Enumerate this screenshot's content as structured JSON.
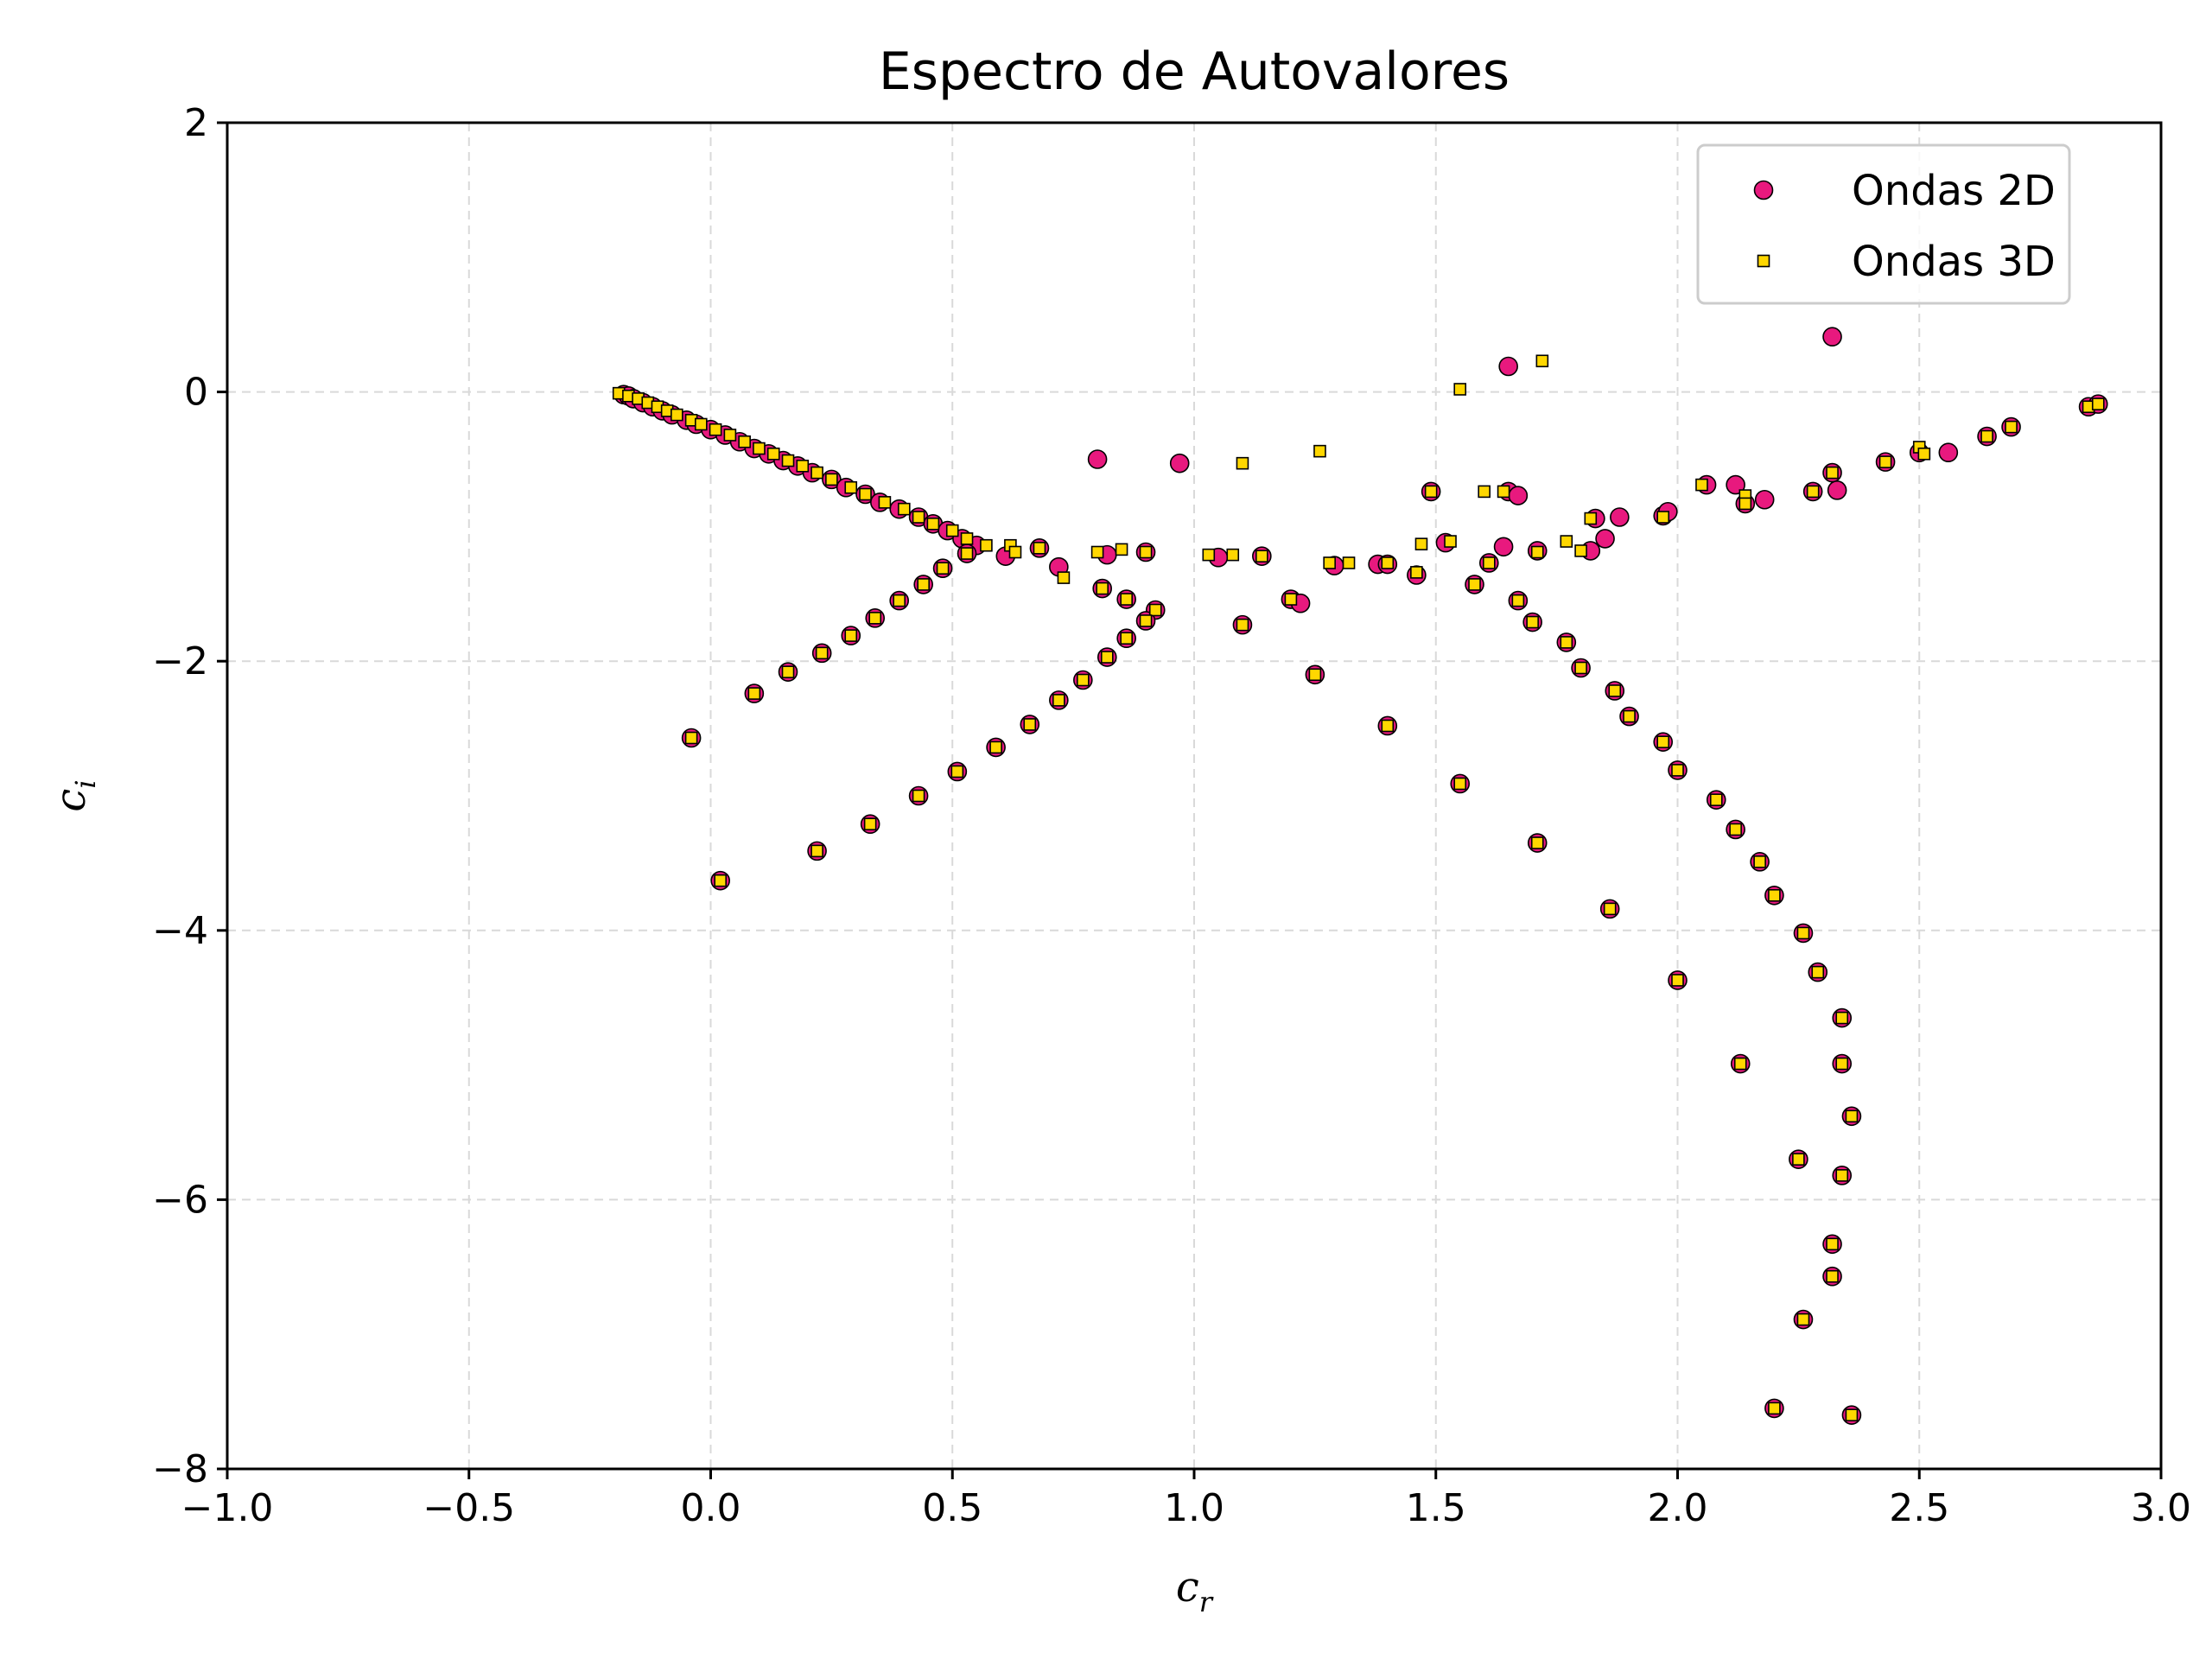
{
  "chart_data": {
    "type": "scatter",
    "title": "Espectro de Autovalores",
    "xlabel": "c",
    "xlabel_sub": "r",
    "ylabel": "c",
    "ylabel_sub": "i",
    "xlim": [
      -1.0,
      3.0
    ],
    "ylim": [
      -8,
      2
    ],
    "xticks": [
      -1.0,
      -0.5,
      0.0,
      0.5,
      1.0,
      1.5,
      2.0,
      2.5,
      3.0
    ],
    "xtick_labels": [
      "−1.0",
      "−0.5",
      "0.0",
      "0.5",
      "1.0",
      "1.5",
      "2.0",
      "2.5",
      "3.0"
    ],
    "yticks": [
      2,
      0,
      -2,
      -4,
      -6,
      -8
    ],
    "ytick_labels": [
      "2",
      "0",
      "−2",
      "−4",
      "−6",
      "−8"
    ],
    "grid": true,
    "legend_position": "top-right",
    "series": [
      {
        "name": "Ondas 2D",
        "marker": "circle",
        "color": "#e8197e",
        "edge_color": "#000000",
        "points": [
          [
            -0.18,
            -0.02
          ],
          [
            -0.17,
            -0.03
          ],
          [
            -0.16,
            -0.05
          ],
          [
            -0.14,
            -0.08
          ],
          [
            -0.12,
            -0.11
          ],
          [
            -0.1,
            -0.14
          ],
          [
            -0.08,
            -0.17
          ],
          [
            -0.05,
            -0.21
          ],
          [
            -0.03,
            -0.24
          ],
          [
            0.0,
            -0.28
          ],
          [
            0.03,
            -0.32
          ],
          [
            0.06,
            -0.37
          ],
          [
            0.09,
            -0.42
          ],
          [
            0.12,
            -0.46
          ],
          [
            0.15,
            -0.51
          ],
          [
            0.18,
            -0.55
          ],
          [
            0.21,
            -0.6
          ],
          [
            0.25,
            -0.65
          ],
          [
            0.28,
            -0.71
          ],
          [
            0.32,
            -0.76
          ],
          [
            0.35,
            -0.82
          ],
          [
            0.39,
            -0.87
          ],
          [
            0.43,
            -0.93
          ],
          [
            0.46,
            -0.98
          ],
          [
            0.49,
            -1.03
          ],
          [
            0.52,
            -1.09
          ],
          [
            0.55,
            -1.14
          ],
          [
            0.53,
            -1.2
          ],
          [
            0.48,
            -1.31
          ],
          [
            0.44,
            -1.43
          ],
          [
            0.39,
            -1.55
          ],
          [
            0.34,
            -1.68
          ],
          [
            0.29,
            -1.81
          ],
          [
            0.23,
            -1.94
          ],
          [
            0.16,
            -2.08
          ],
          [
            0.09,
            -2.24
          ],
          [
            -0.04,
            -2.57
          ],
          [
            0.02,
            -3.63
          ],
          [
            0.68,
            -1.16
          ],
          [
            0.72,
            -1.3
          ],
          [
            0.81,
            -1.46
          ],
          [
            0.86,
            -1.54
          ],
          [
            0.92,
            -1.62
          ],
          [
            0.9,
            -1.7
          ],
          [
            0.86,
            -1.83
          ],
          [
            0.82,
            -1.97
          ],
          [
            0.77,
            -2.14
          ],
          [
            0.72,
            -2.29
          ],
          [
            0.66,
            -2.47
          ],
          [
            0.59,
            -2.64
          ],
          [
            0.51,
            -2.82
          ],
          [
            0.43,
            -3.0
          ],
          [
            0.33,
            -3.21
          ],
          [
            0.22,
            -3.41
          ],
          [
            0.61,
            -1.22
          ],
          [
            0.8,
            -0.5
          ],
          [
            0.97,
            -0.53
          ],
          [
            0.82,
            -1.21
          ],
          [
            0.9,
            -1.19
          ],
          [
            1.05,
            -1.23
          ],
          [
            1.14,
            -1.22
          ],
          [
            1.1,
            -1.73
          ],
          [
            1.2,
            -1.54
          ],
          [
            1.22,
            -1.57
          ],
          [
            1.25,
            -2.1
          ],
          [
            1.29,
            -1.29
          ],
          [
            1.38,
            -1.28
          ],
          [
            1.4,
            -1.28
          ],
          [
            1.4,
            -2.48
          ],
          [
            1.46,
            -1.36
          ],
          [
            1.49,
            -0.74
          ],
          [
            1.52,
            -1.12
          ],
          [
            1.55,
            -2.91
          ],
          [
            1.58,
            -1.43
          ],
          [
            1.61,
            -1.27
          ],
          [
            1.64,
            -1.15
          ],
          [
            1.65,
            0.19
          ],
          [
            1.65,
            -0.74
          ],
          [
            1.67,
            -0.77
          ],
          [
            1.67,
            -1.55
          ],
          [
            1.7,
            -1.71
          ],
          [
            1.71,
            -1.18
          ],
          [
            1.71,
            -3.35
          ],
          [
            1.77,
            -1.86
          ],
          [
            1.8,
            -2.05
          ],
          [
            1.82,
            -1.18
          ],
          [
            1.83,
            -0.94
          ],
          [
            1.85,
            -1.09
          ],
          [
            1.86,
            -3.84
          ],
          [
            1.87,
            -2.22
          ],
          [
            1.88,
            -0.93
          ],
          [
            1.9,
            -2.41
          ],
          [
            1.97,
            -0.92
          ],
          [
            1.97,
            -2.6
          ],
          [
            1.98,
            -0.89
          ],
          [
            2.0,
            -2.81
          ],
          [
            2.0,
            -4.37
          ],
          [
            2.06,
            -0.69
          ],
          [
            2.08,
            -3.03
          ],
          [
            2.12,
            -0.69
          ],
          [
            2.12,
            -3.25
          ],
          [
            2.13,
            -4.99
          ],
          [
            2.14,
            -0.83
          ],
          [
            2.17,
            -3.49
          ],
          [
            2.18,
            -0.8
          ],
          [
            2.2,
            -3.74
          ],
          [
            2.2,
            -7.55
          ],
          [
            2.25,
            -5.7
          ],
          [
            2.26,
            -4.02
          ],
          [
            2.26,
            -6.89
          ],
          [
            2.28,
            -0.74
          ],
          [
            2.29,
            -4.31
          ],
          [
            2.32,
            0.41
          ],
          [
            2.32,
            -0.6
          ],
          [
            2.32,
            -6.33
          ],
          [
            2.32,
            -6.57
          ],
          [
            2.33,
            -0.73
          ],
          [
            2.34,
            -4.65
          ],
          [
            2.34,
            -4.99
          ],
          [
            2.34,
            -5.82
          ],
          [
            2.36,
            -5.38
          ],
          [
            2.36,
            -7.6
          ],
          [
            2.43,
            -0.52
          ],
          [
            2.5,
            -0.45
          ],
          [
            2.56,
            -0.45
          ],
          [
            2.64,
            -0.33
          ],
          [
            2.69,
            -0.26
          ],
          [
            2.85,
            -0.11
          ],
          [
            2.87,
            -0.09
          ]
        ]
      },
      {
        "name": "Ondas 3D",
        "marker": "square",
        "color": "#ffd700",
        "edge_color": "#000000",
        "points": [
          [
            -0.19,
            -0.01
          ],
          [
            -0.17,
            -0.03
          ],
          [
            -0.15,
            -0.05
          ],
          [
            -0.13,
            -0.08
          ],
          [
            -0.11,
            -0.11
          ],
          [
            -0.09,
            -0.14
          ],
          [
            -0.07,
            -0.17
          ],
          [
            -0.04,
            -0.21
          ],
          [
            -0.02,
            -0.24
          ],
          [
            0.01,
            -0.28
          ],
          [
            0.04,
            -0.32
          ],
          [
            0.07,
            -0.37
          ],
          [
            0.1,
            -0.42
          ],
          [
            0.13,
            -0.46
          ],
          [
            0.16,
            -0.51
          ],
          [
            0.19,
            -0.55
          ],
          [
            0.22,
            -0.6
          ],
          [
            0.25,
            -0.65
          ],
          [
            0.29,
            -0.71
          ],
          [
            0.32,
            -0.76
          ],
          [
            0.36,
            -0.82
          ],
          [
            0.4,
            -0.87
          ],
          [
            0.43,
            -0.93
          ],
          [
            0.46,
            -0.98
          ],
          [
            0.5,
            -1.03
          ],
          [
            0.53,
            -1.09
          ],
          [
            0.57,
            -1.14
          ],
          [
            0.53,
            -1.2
          ],
          [
            0.48,
            -1.31
          ],
          [
            0.44,
            -1.43
          ],
          [
            0.39,
            -1.55
          ],
          [
            0.34,
            -1.68
          ],
          [
            0.29,
            -1.81
          ],
          [
            0.23,
            -1.94
          ],
          [
            0.16,
            -2.08
          ],
          [
            0.09,
            -2.24
          ],
          [
            -0.04,
            -2.57
          ],
          [
            0.02,
            -3.63
          ],
          [
            0.68,
            -1.16
          ],
          [
            0.73,
            -1.38
          ],
          [
            0.81,
            -1.46
          ],
          [
            0.86,
            -1.54
          ],
          [
            0.92,
            -1.62
          ],
          [
            0.9,
            -1.7
          ],
          [
            0.86,
            -1.83
          ],
          [
            0.82,
            -1.97
          ],
          [
            0.77,
            -2.14
          ],
          [
            0.72,
            -2.29
          ],
          [
            0.66,
            -2.47
          ],
          [
            0.59,
            -2.64
          ],
          [
            0.51,
            -2.82
          ],
          [
            0.43,
            -3.0
          ],
          [
            0.33,
            -3.21
          ],
          [
            0.22,
            -3.41
          ],
          [
            0.62,
            -1.14
          ],
          [
            0.63,
            -1.19
          ],
          [
            0.8,
            -1.19
          ],
          [
            0.85,
            -1.17
          ],
          [
            0.9,
            -1.19
          ],
          [
            1.03,
            -1.21
          ],
          [
            1.08,
            -1.21
          ],
          [
            1.1,
            -0.53
          ],
          [
            1.14,
            -1.22
          ],
          [
            1.1,
            -1.73
          ],
          [
            1.2,
            -1.54
          ],
          [
            1.25,
            -2.1
          ],
          [
            1.26,
            -0.44
          ],
          [
            1.28,
            -1.27
          ],
          [
            1.32,
            -1.27
          ],
          [
            1.4,
            -1.27
          ],
          [
            1.4,
            -2.48
          ],
          [
            1.46,
            -1.34
          ],
          [
            1.47,
            -1.13
          ],
          [
            1.49,
            -0.74
          ],
          [
            1.53,
            -1.11
          ],
          [
            1.55,
            0.02
          ],
          [
            1.55,
            -2.91
          ],
          [
            1.58,
            -1.43
          ],
          [
            1.6,
            -0.74
          ],
          [
            1.61,
            -1.27
          ],
          [
            1.64,
            -0.74
          ],
          [
            1.67,
            -1.55
          ],
          [
            1.7,
            -1.71
          ],
          [
            1.71,
            -1.19
          ],
          [
            1.71,
            -3.35
          ],
          [
            1.72,
            0.23
          ],
          [
            1.77,
            -1.11
          ],
          [
            1.77,
            -1.86
          ],
          [
            1.8,
            -1.18
          ],
          [
            1.8,
            -2.05
          ],
          [
            1.82,
            -0.94
          ],
          [
            1.86,
            -3.84
          ],
          [
            1.87,
            -2.22
          ],
          [
            1.9,
            -2.41
          ],
          [
            1.97,
            -0.93
          ],
          [
            1.97,
            -2.6
          ],
          [
            2.0,
            -2.81
          ],
          [
            2.0,
            -4.37
          ],
          [
            2.05,
            -0.69
          ],
          [
            2.08,
            -3.03
          ],
          [
            2.12,
            -3.25
          ],
          [
            2.13,
            -4.99
          ],
          [
            2.14,
            -0.77
          ],
          [
            2.14,
            -0.83
          ],
          [
            2.17,
            -3.49
          ],
          [
            2.2,
            -3.74
          ],
          [
            2.2,
            -7.55
          ],
          [
            2.25,
            -5.7
          ],
          [
            2.26,
            -4.02
          ],
          [
            2.26,
            -6.89
          ],
          [
            2.28,
            -0.74
          ],
          [
            2.29,
            -4.31
          ],
          [
            2.32,
            -0.6
          ],
          [
            2.32,
            -6.33
          ],
          [
            2.32,
            -6.57
          ],
          [
            2.34,
            -4.65
          ],
          [
            2.34,
            -4.99
          ],
          [
            2.34,
            -5.82
          ],
          [
            2.36,
            -5.38
          ],
          [
            2.36,
            -7.6
          ],
          [
            2.43,
            -0.52
          ],
          [
            2.5,
            -0.41
          ],
          [
            2.51,
            -0.46
          ],
          [
            2.64,
            -0.33
          ],
          [
            2.69,
            -0.26
          ],
          [
            2.85,
            -0.11
          ],
          [
            2.87,
            -0.09
          ]
        ]
      }
    ]
  }
}
